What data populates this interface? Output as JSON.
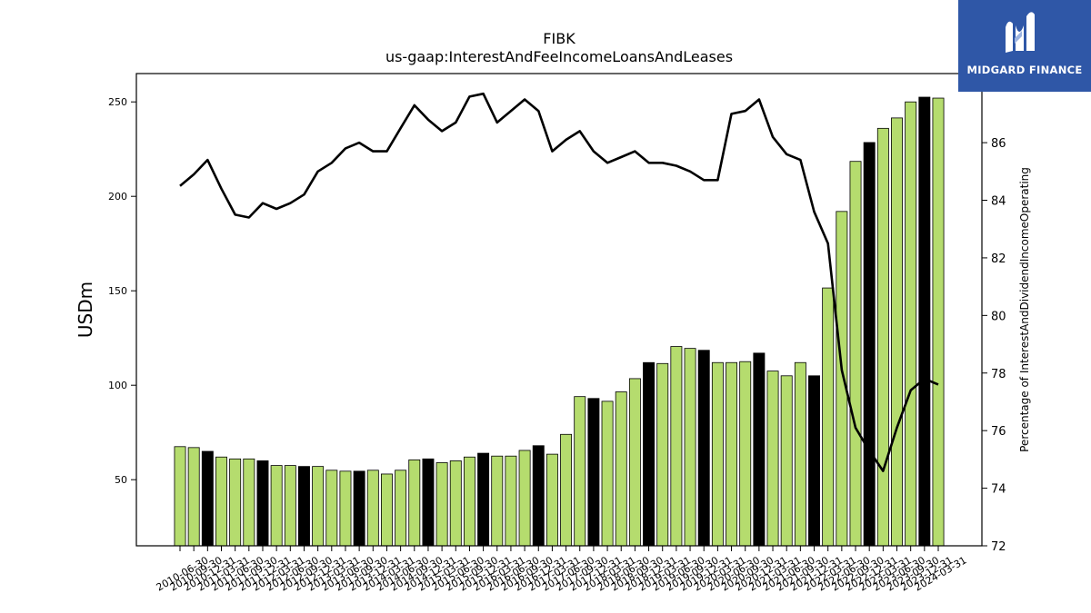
{
  "brand": {
    "name": "MIDGARD FINANCE",
    "color": "#2f57a7"
  },
  "chart_data": {
    "type": "bar",
    "title": "FIBK",
    "subtitle": "us-gaap:InterestAndFeeIncomeLoansAndLeases",
    "ylabel": "USDm",
    "y2label": "Percentage of InterestAndDividendIncomeOperating",
    "ylim": [
      15,
      265
    ],
    "y2lim": [
      72,
      88.4
    ],
    "yticks": [
      50,
      100,
      150,
      200,
      250
    ],
    "y2ticks": [
      72,
      74,
      76,
      78,
      80,
      82,
      84,
      86
    ],
    "bar_color": "#b5dc6e",
    "highlight_color": "#000000",
    "line_color": "#000000",
    "categories": [
      "2010-06-30",
      "2010-09-30",
      "2010-12-31",
      "2011-03-31",
      "2011-06-30",
      "2011-09-30",
      "2011-12-31",
      "2012-03-31",
      "2012-06-30",
      "2012-09-30",
      "2012-12-31",
      "2013-03-31",
      "2013-06-30",
      "2013-09-30",
      "2013-12-31",
      "2014-03-31",
      "2014-06-30",
      "2014-09-30",
      "2014-12-31",
      "2015-03-31",
      "2015-06-30",
      "2015-09-30",
      "2015-12-31",
      "2016-03-31",
      "2016-06-30",
      "2016-09-30",
      "2016-12-31",
      "2017-03-31",
      "2017-06-30",
      "2017-09-30",
      "2017-12-31",
      "2018-03-31",
      "2018-06-30",
      "2018-09-30",
      "2018-12-31",
      "2019-03-31",
      "2019-06-30",
      "2019-09-30",
      "2019-12-31",
      "2020-03-31",
      "2020-06-30",
      "2020-09-30",
      "2020-12-31",
      "2021-03-31",
      "2021-06-30",
      "2021-09-30",
      "2021-12-31",
      "2022-03-31",
      "2022-06-30",
      "2022-09-30",
      "2022-12-31",
      "2023-03-31",
      "2023-06-30",
      "2023-09-30",
      "2023-12-31",
      "2024-03-31"
    ],
    "tick_labels": [
      "2010-06-30",
      "2010-09-30",
      "2010-12-31",
      "2011-03-31",
      "2011-06-30",
      "2011-09-30",
      "2011-12-31",
      "2012-03-31",
      "2012-06-30",
      "2012-09-30",
      "2012-12-31",
      "2013-03-31",
      "2013-06-30",
      "2013-09-30",
      "2013-12-31",
      "2014-03-31",
      "2014-06-30",
      "2014-09-30",
      "2014-12-31",
      "2015-03-31",
      "2015-06-30",
      "2015-09-30",
      "2015-12-31",
      "2016-03-31",
      "2016-06-30",
      "2016-09-30",
      "2016-12-31",
      "2017-03-31",
      "2017-06-30",
      "2017-09-30",
      "2017-12-31",
      "2018-03-31",
      "2018-06-30",
      "2018-09-30",
      "2018-12-31",
      "2019-03-31",
      "2019-06-30",
      "2019-09-30",
      "2019-12-31",
      "2020-03-31",
      "2020-06-30",
      "2020-09-30",
      "2020-12-31",
      "2021-03-31",
      "2021-06-30",
      "2021-09-30",
      "2021-12-31",
      "2022-03-31",
      "2022-06-30",
      "2022-09-30",
      "2022-12-31",
      "2023-03-31",
      "2023-06-30",
      "2023-09-30",
      "2023-12-31",
      "2024-03-31"
    ],
    "values": [
      67.5,
      67,
      65,
      62,
      61,
      61,
      60,
      57.5,
      57.5,
      57,
      57,
      55,
      54.5,
      54.5,
      55,
      53,
      55,
      60.5,
      61,
      59,
      60,
      62,
      64,
      62.5,
      62.5,
      65.5,
      68,
      63.5,
      74,
      94,
      93,
      91.5,
      96.5,
      103.5,
      112,
      111.5,
      120.5,
      119.5,
      118.5,
      112,
      112,
      112.5,
      117,
      107.5,
      105,
      112,
      105,
      151.5,
      192,
      218.5,
      228.5,
      236,
      241.5,
      250,
      252.5,
      252
    ],
    "highlight": [
      false,
      false,
      true,
      false,
      false,
      false,
      true,
      false,
      false,
      true,
      false,
      false,
      false,
      true,
      false,
      false,
      false,
      false,
      true,
      false,
      false,
      false,
      true,
      false,
      false,
      false,
      true,
      false,
      false,
      false,
      true,
      false,
      false,
      false,
      true,
      false,
      false,
      false,
      true,
      false,
      false,
      false,
      true,
      false,
      false,
      false,
      true,
      false,
      false,
      false,
      true,
      false,
      false,
      false,
      true,
      false
    ],
    "series": [
      {
        "type": "line",
        "axis": "right",
        "values": [
          84.5,
          84.9,
          85.4,
          84.4,
          83.5,
          83.4,
          83.9,
          83.7,
          83.9,
          84.2,
          85,
          85.3,
          85.8,
          86,
          85.7,
          85.7,
          86.5,
          87.3,
          86.8,
          86.4,
          86.7,
          87.6,
          87.7,
          86.7,
          87.1,
          87.5,
          87.1,
          85.7,
          86.1,
          86.4,
          85.7,
          85.3,
          85.5,
          85.7,
          85.3,
          85.3,
          85.2,
          85,
          84.7,
          84.7,
          87,
          87.1,
          87.5,
          86.2,
          85.6,
          85.4,
          83.6,
          82.5,
          78.1,
          76.1,
          75.3,
          74.6,
          76.1,
          77.4,
          77.8,
          77.6
        ]
      }
    ]
  }
}
